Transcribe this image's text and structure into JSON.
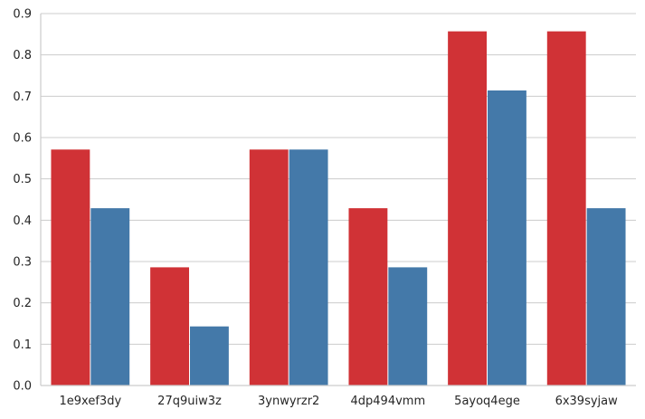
{
  "chart_data": {
    "type": "bar",
    "title": "",
    "xlabel": "",
    "ylabel": "",
    "categories": [
      "1e9xef3dy",
      "27q9uiw3z",
      "3ynwyrzr2",
      "4dp494vmm",
      "5ayoq4ege",
      "6x39syjaw"
    ],
    "series": [
      {
        "color": "#d03236",
        "values": [
          0.571,
          0.286,
          0.571,
          0.429,
          0.857,
          0.857
        ]
      },
      {
        "color": "#4479a9",
        "values": [
          0.429,
          0.143,
          0.571,
          0.286,
          0.714,
          0.429
        ]
      }
    ],
    "ylim": [
      0,
      0.9
    ],
    "yticks": [
      "0.0",
      "0.1",
      "0.2",
      "0.3",
      "0.4",
      "0.5",
      "0.6",
      "0.7",
      "0.8",
      "0.9"
    ],
    "grid": "horizontal",
    "legend": "none"
  }
}
